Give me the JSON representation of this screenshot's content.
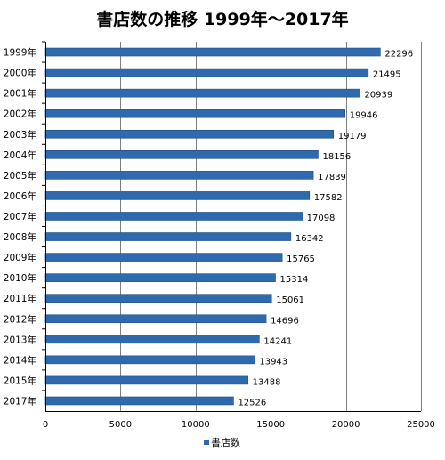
{
  "chart_data": {
    "type": "bar",
    "orientation": "horizontal",
    "title": "書店数の推移 1999年～2017年",
    "categories": [
      "1999年",
      "2000年",
      "2001年",
      "2002年",
      "2003年",
      "2004年",
      "2005年",
      "2006年",
      "2007年",
      "2008年",
      "2009年",
      "2010年",
      "2011年",
      "2012年",
      "2013年",
      "2014年",
      "2015年",
      "2017年"
    ],
    "series": [
      {
        "name": "書店数",
        "color": "#2e6aad",
        "values": [
          22296,
          21495,
          20939,
          19946,
          19179,
          18156,
          17839,
          17582,
          17098,
          16342,
          15765,
          15314,
          15061,
          14696,
          14241,
          13943,
          13488,
          12526
        ]
      }
    ],
    "xlim": [
      0,
      25000
    ],
    "xticks": [
      0,
      5000,
      10000,
      15000,
      20000,
      25000
    ],
    "grid": "vertical",
    "legend": "bottom"
  }
}
